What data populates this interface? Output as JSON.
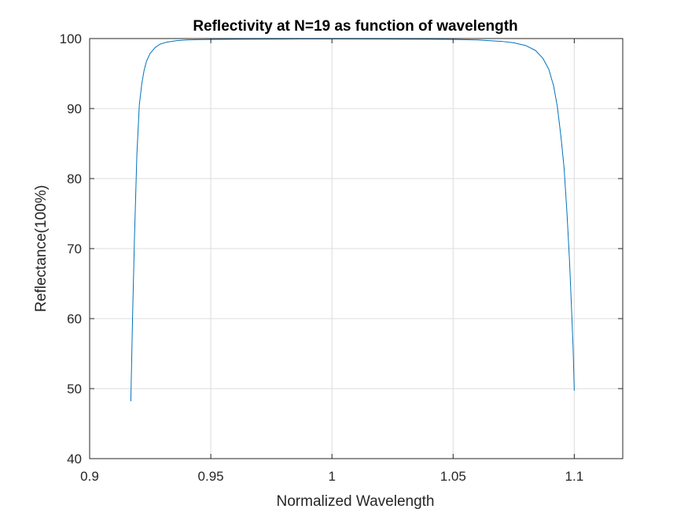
{
  "chart_data": {
    "type": "line",
    "title": "Reflectivity at N=19 as function of wavelength",
    "xlabel": "Normalized Wavelength",
    "ylabel": "Reflectance(100%)",
    "xlim": [
      0.9,
      1.12
    ],
    "ylim": [
      40,
      100
    ],
    "xticks": [
      0.9,
      0.95,
      1,
      1.05,
      1.1
    ],
    "xtick_labels": [
      "0.9",
      "0.95",
      "1",
      "1.05",
      "1.1"
    ],
    "yticks": [
      40,
      50,
      60,
      70,
      80,
      90,
      100
    ],
    "ytick_labels": [
      "40",
      "50",
      "60",
      "70",
      "80",
      "90",
      "100"
    ],
    "grid": true,
    "series": [
      {
        "color": "#0072bd",
        "x": [
          0.917,
          0.9177,
          0.9185,
          0.9195,
          0.9205,
          0.9215,
          0.9225,
          0.9235,
          0.925,
          0.927,
          0.929,
          0.932,
          0.936,
          0.94,
          0.945,
          0.95,
          0.96,
          0.97,
          0.98,
          1.0,
          1.02,
          1.04,
          1.05,
          1.06,
          1.07,
          1.075,
          1.08,
          1.084,
          1.087,
          1.0895,
          1.0915,
          1.093,
          1.0945,
          1.0958,
          1.097,
          1.098,
          1.0988,
          1.0995,
          1.1
        ],
        "y": [
          48.2,
          60.0,
          71.5,
          83.5,
          90.5,
          93.5,
          95.5,
          96.8,
          97.9,
          98.7,
          99.2,
          99.5,
          99.7,
          99.8,
          99.85,
          99.88,
          99.9,
          99.92,
          99.93,
          99.95,
          99.93,
          99.9,
          99.88,
          99.8,
          99.6,
          99.4,
          99.0,
          98.3,
          97.2,
          95.6,
          93.2,
          90.3,
          86.0,
          81.5,
          75.0,
          68.5,
          62.0,
          56.0,
          49.7
        ]
      }
    ]
  }
}
